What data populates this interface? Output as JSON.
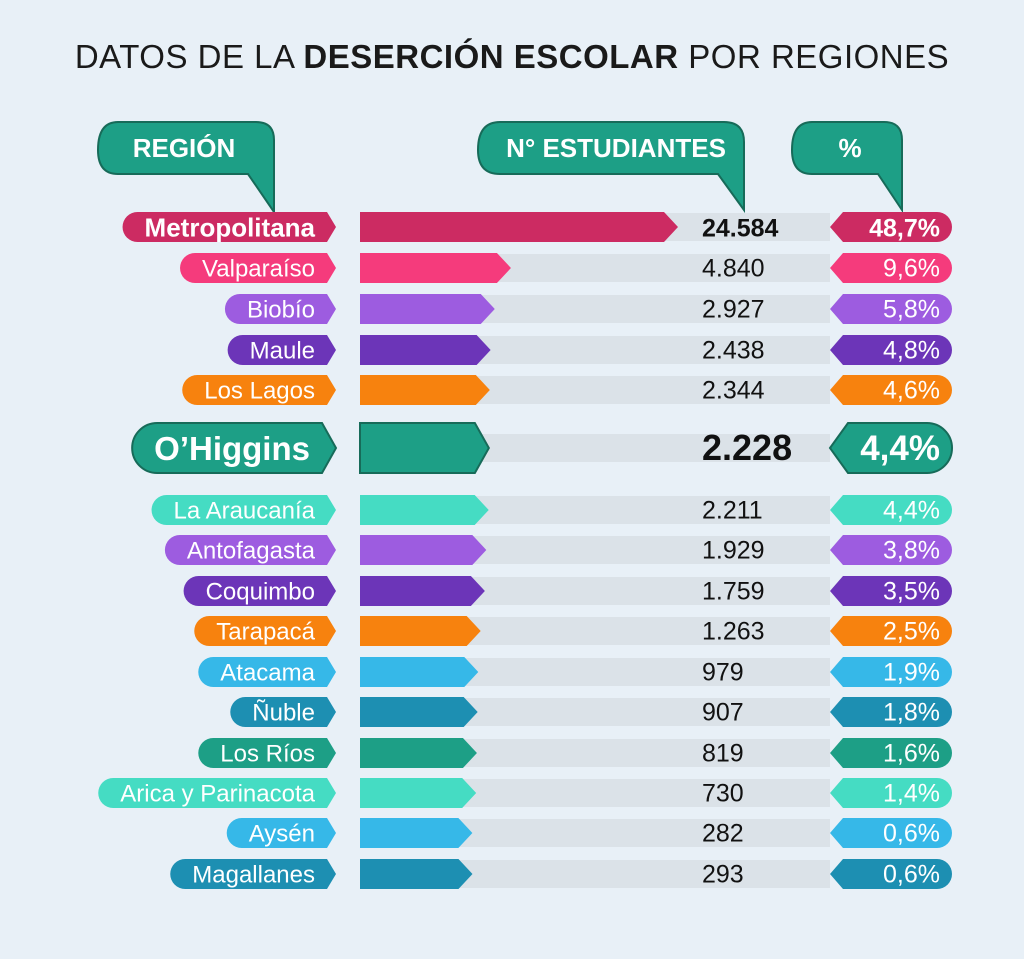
{
  "title": {
    "prefix": "DATOS DE LA",
    "bold": "DESERCIÓN ESCOLAR",
    "suffix": "POR REGIONES"
  },
  "headers": {
    "region": "REGIÓN",
    "students": "N° ESTUDIANTES",
    "percent": "%"
  },
  "chart_data": {
    "type": "bar",
    "title": "DATOS DE LA DESERCIÓN ESCOLAR POR REGIONES",
    "series_labels": [
      "N° ESTUDIANTES",
      "%"
    ],
    "rows": [
      {
        "region": "Metropolitana",
        "value": 24584,
        "label": "24.584",
        "percent": 48.7,
        "percent_label": "48,7%",
        "color": "#cc2b62",
        "style": "bold"
      },
      {
        "region": "Valparaíso",
        "value": 4840,
        "label": "4.840",
        "percent": 9.6,
        "percent_label": "9,6%",
        "color": "#f53b7c",
        "style": "normal"
      },
      {
        "region": "Biobío",
        "value": 2927,
        "label": "2.927",
        "percent": 5.8,
        "percent_label": "5,8%",
        "color": "#9d5ce0",
        "style": "normal"
      },
      {
        "region": "Maule",
        "value": 2438,
        "label": "2.438",
        "percent": 4.8,
        "percent_label": "4,8%",
        "color": "#6c35b8",
        "style": "normal"
      },
      {
        "region": "Los Lagos",
        "value": 2344,
        "label": "2.344",
        "percent": 4.6,
        "percent_label": "4,6%",
        "color": "#f7820e",
        "style": "normal"
      },
      {
        "region": "O’Higgins",
        "value": 2228,
        "label": "2.228",
        "percent": 4.4,
        "percent_label": "4,4%",
        "color": "#1d9f86",
        "style": "highlight"
      },
      {
        "region": "La Araucanía",
        "value": 2211,
        "label": "2.211",
        "percent": 4.4,
        "percent_label": "4,4%",
        "color": "#45dcc3",
        "style": "normal"
      },
      {
        "region": "Antofagasta",
        "value": 1929,
        "label": "1.929",
        "percent": 3.8,
        "percent_label": "3,8%",
        "color": "#9d5ce0",
        "style": "normal"
      },
      {
        "region": "Coquimbo",
        "value": 1759,
        "label": "1.759",
        "percent": 3.5,
        "percent_label": "3,5%",
        "color": "#6c35b8",
        "style": "normal"
      },
      {
        "region": "Tarapacá",
        "value": 1263,
        "label": "1.263",
        "percent": 2.5,
        "percent_label": "2,5%",
        "color": "#f7820e",
        "style": "normal"
      },
      {
        "region": "Atacama",
        "value": 979,
        "label": "979",
        "percent": 1.9,
        "percent_label": "1,9%",
        "color": "#36b8e8",
        "style": "normal"
      },
      {
        "region": "Ñuble",
        "value": 907,
        "label": "907",
        "percent": 1.8,
        "percent_label": "1,8%",
        "color": "#1d8fb2",
        "style": "normal"
      },
      {
        "region": "Los Ríos",
        "value": 819,
        "label": "819",
        "percent": 1.6,
        "percent_label": "1,6%",
        "color": "#1d9f86",
        "style": "normal"
      },
      {
        "region": "Arica y Parinacota",
        "value": 730,
        "label": "730",
        "percent": 1.4,
        "percent_label": "1,4%",
        "color": "#45dcc3",
        "style": "normal"
      },
      {
        "region": "Aysén",
        "value": 282,
        "label": "282",
        "percent": 0.6,
        "percent_label": "0,6%",
        "color": "#36b8e8",
        "style": "normal"
      },
      {
        "region": "Magallanes",
        "value": 293,
        "label": "293",
        "percent": 0.6,
        "percent_label": "0,6%",
        "color": "#1d8fb2",
        "style": "normal"
      }
    ]
  },
  "colors": {
    "header": "#1d9f86",
    "header_border": "#176b59",
    "track": "#dbe2e8",
    "background": "#e8f0f7"
  }
}
